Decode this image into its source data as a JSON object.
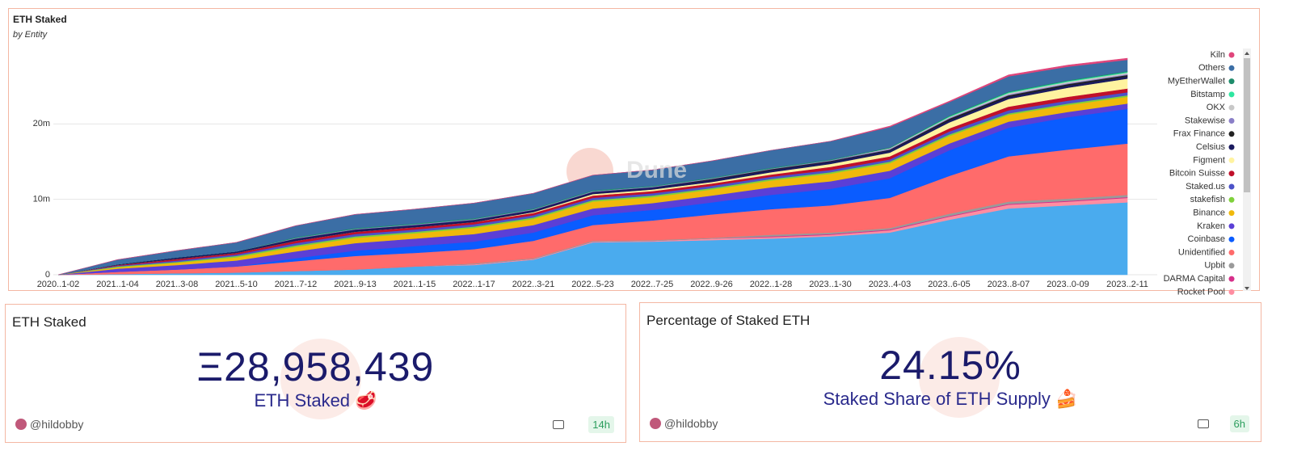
{
  "chart_data": {
    "type": "stacked-area",
    "title": "ETH Staked",
    "subtitle": "by Entity",
    "watermark": "Dune",
    "categories": [
      "2020..1-02",
      "2021..1-04",
      "2021..3-08",
      "2021..5-10",
      "2021..7-12",
      "2021..9-13",
      "2021..1-15",
      "2022..1-17",
      "2022..3-21",
      "2022..5-23",
      "2022..7-25",
      "2022..9-26",
      "2022..1-28",
      "2023..1-30",
      "2023..4-03",
      "2023..6-05",
      "2023..8-07",
      "2023..0-09",
      "2023..2-11"
    ],
    "ylim": [
      0,
      30000000
    ],
    "yticks": [
      0,
      {
        "value": 10000000,
        "label": "10m"
      },
      {
        "value": 20000000,
        "label": "20m"
      }
    ],
    "grid": true,
    "legend": "right",
    "series": [
      {
        "color": "#4aabee",
        "values": [
          0,
          100000,
          200000,
          300000,
          500000,
          700000,
          1100000,
          1300000,
          2000000,
          4300000,
          4400000,
          4600000,
          4800000,
          5100000,
          5600000,
          7300000,
          8800000,
          9200000,
          9600000
        ]
      },
      {
        "name": "Rocket Pool",
        "color": "#ff8da1",
        "values": [
          0,
          0,
          0,
          0,
          0,
          0,
          0,
          100000,
          100000,
          100000,
          100000,
          200000,
          200000,
          200000,
          300000,
          400000,
          500000,
          500000,
          600000
        ]
      },
      {
        "name": "DARMA Capital",
        "color": "#d62f8a",
        "values": [
          0,
          0,
          0,
          0,
          0,
          0,
          0,
          0,
          0,
          0,
          0,
          0,
          100000,
          100000,
          100000,
          100000,
          100000,
          100000,
          100000
        ]
      },
      {
        "name": "Upbit",
        "color": "#9a9a9a",
        "values": [
          0,
          0,
          0,
          0,
          0,
          0,
          0,
          100000,
          100000,
          100000,
          100000,
          100000,
          200000,
          200000,
          200000,
          300000,
          300000,
          300000,
          300000
        ]
      },
      {
        "name": "Unidentified",
        "color": "#ff6b6b",
        "values": [
          0,
          300000,
          500000,
          800000,
          1300000,
          1800000,
          1800000,
          1900000,
          2300000,
          2100000,
          2600000,
          3100000,
          3400000,
          3600000,
          4000000,
          5000000,
          6000000,
          6500000,
          6800000
        ]
      },
      {
        "name": "Coinbase",
        "color": "#0a5cff",
        "values": [
          0,
          0,
          0,
          0,
          400000,
          700000,
          900000,
          1000000,
          1100000,
          1300000,
          1400000,
          1600000,
          1900000,
          2200000,
          2600000,
          3400000,
          3800000,
          4300000,
          4600000
        ]
      },
      {
        "name": "Kraken",
        "color": "#5b3fd6",
        "values": [
          0,
          400000,
          600000,
          800000,
          900000,
          1000000,
          1000000,
          1000000,
          1000000,
          900000,
          900000,
          900000,
          1000000,
          1000000,
          1000000,
          900000,
          800000,
          700000,
          700000
        ]
      },
      {
        "name": "Binance",
        "color": "#f0b90b",
        "values": [
          0,
          200000,
          300000,
          400000,
          600000,
          700000,
          700000,
          800000,
          800000,
          900000,
          800000,
          800000,
          900000,
          1000000,
          1000000,
          1000000,
          900000,
          900000,
          900000
        ]
      },
      {
        "name": "stakefish",
        "color": "#7fd13b",
        "values": [
          0,
          100000,
          100000,
          200000,
          200000,
          200000,
          200000,
          200000,
          200000,
          200000,
          200000,
          200000,
          200000,
          200000,
          200000,
          200000,
          200000,
          200000,
          200000
        ]
      },
      {
        "name": "Staked.us",
        "color": "#4b52c8",
        "values": [
          0,
          100000,
          200000,
          200000,
          300000,
          300000,
          300000,
          300000,
          300000,
          300000,
          300000,
          300000,
          300000,
          300000,
          300000,
          400000,
          400000,
          400000,
          400000
        ]
      },
      {
        "name": "Bitcoin Suisse",
        "color": "#c0102a",
        "values": [
          0,
          100000,
          200000,
          200000,
          300000,
          300000,
          300000,
          300000,
          300000,
          300000,
          300000,
          300000,
          300000,
          400000,
          400000,
          400000,
          500000,
          500000,
          500000
        ]
      },
      {
        "name": "Figment",
        "color": "#fff3a0",
        "values": [
          0,
          0,
          0,
          0,
          0,
          0,
          0,
          0,
          100000,
          200000,
          200000,
          200000,
          300000,
          400000,
          500000,
          800000,
          1000000,
          1200000,
          1300000
        ]
      },
      {
        "name": "Celsius",
        "color": "#1a1a5e",
        "values": [
          0,
          100000,
          200000,
          200000,
          300000,
          300000,
          300000,
          300000,
          300000,
          300000,
          300000,
          300000,
          300000,
          300000,
          300000,
          300000,
          300000,
          300000,
          300000
        ]
      },
      {
        "name": "Frax Finance",
        "color": "#222222",
        "values": [
          0,
          0,
          0,
          0,
          0,
          0,
          0,
          0,
          0,
          0,
          0,
          100000,
          100000,
          100000,
          100000,
          200000,
          200000,
          200000,
          200000
        ]
      },
      {
        "name": "Stakewise",
        "color": "#8a7fc7",
        "values": [
          0,
          0,
          0,
          0,
          100000,
          100000,
          100000,
          100000,
          100000,
          100000,
          100000,
          100000,
          100000,
          100000,
          100000,
          100000,
          100000,
          100000,
          100000
        ]
      },
      {
        "name": "OKX",
        "color": "#c8c8c8",
        "values": [
          0,
          0,
          0,
          0,
          0,
          0,
          0,
          0,
          0,
          0,
          0,
          0,
          0,
          0,
          100000,
          100000,
          200000,
          200000,
          200000
        ]
      },
      {
        "name": "Bitstamp",
        "color": "#2ee6a0",
        "values": [
          0,
          0,
          0,
          0,
          0,
          0,
          0,
          0,
          0,
          0,
          0,
          0,
          0,
          0,
          0,
          100000,
          100000,
          100000,
          100000
        ]
      },
      {
        "name": "MyEtherWallet",
        "color": "#1e8c6b",
        "values": [
          0,
          0,
          0,
          0,
          100000,
          100000,
          100000,
          100000,
          100000,
          100000,
          100000,
          100000,
          100000,
          100000,
          100000,
          100000,
          100000,
          100000,
          100000
        ]
      },
      {
        "name": "Others",
        "color": "#3b6ea5",
        "values": [
          0,
          600000,
          900000,
          1200000,
          1500000,
          1800000,
          1900000,
          2000000,
          2000000,
          2000000,
          2100000,
          2200000,
          2300000,
          2400000,
          2700000,
          1800000,
          2000000,
          1800000,
          1500000
        ]
      },
      {
        "name": "Kiln",
        "color": "#e0457b",
        "values": [
          0,
          0,
          0,
          0,
          0,
          0,
          0,
          0,
          0,
          0,
          0,
          0,
          0,
          0,
          100000,
          100000,
          200000,
          200000,
          200000
        ]
      }
    ]
  },
  "counters": [
    {
      "title": "ETH Staked",
      "value": "Ξ28,958,439",
      "subtitle": "ETH Staked 🥩",
      "author": "@hildobby",
      "age": "14h"
    },
    {
      "title": "Percentage of Staked ETH",
      "value": "24.15%",
      "subtitle": "Staked Share of ETH Supply 🍰",
      "author": "@hildobby",
      "age": "6h"
    }
  ]
}
